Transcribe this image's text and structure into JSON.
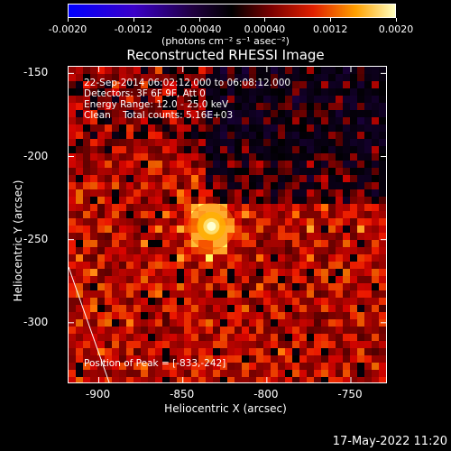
{
  "colorbar": {
    "ticks": [
      "-0.0020",
      "-0.0012",
      "-0.00040",
      "0.00040",
      "0.0012",
      "0.0020"
    ],
    "unit": "(photons cm⁻² s⁻¹ asec⁻²)"
  },
  "header": {
    "title": "Reconstructed RHESSI Image"
  },
  "info": {
    "line1": "22-Sep-2014 06:02:12.000 to 06:08:12.000",
    "line2": "Detectors: 3F 6F 9F, Att 0",
    "line3": "Energy Range: 12.0 - 25.0 keV",
    "line4": "Clean    Total counts: 5.16E+03",
    "peak": "Position of Peak = [-833,-242]"
  },
  "footer": {
    "timestamp": "17-May-2022 11:20"
  },
  "chart_data": {
    "type": "heatmap",
    "title": "Reconstructed RHESSI Image",
    "xlabel": "Heliocentric X (arcsec)",
    "ylabel": "Heliocentric Y (arcsec)",
    "xlim": [
      -918,
      -728
    ],
    "ylim": [
      -337,
      -146
    ],
    "xticks": [
      -900,
      -850,
      -800,
      -750
    ],
    "yticks": [
      -150,
      -200,
      -250,
      -300
    ],
    "xtick_labels": [
      "-900",
      "-850",
      "-800",
      "-750"
    ],
    "ytick_labels": [
      "-150",
      "-200",
      "-250",
      "-300"
    ],
    "colorbar_range": [
      -0.002,
      0.002
    ],
    "peak": {
      "x": -833,
      "y": -242
    },
    "colors": {
      "background": "#000000",
      "frame": "#ffffff",
      "limb_line": "#ffffff"
    }
  }
}
